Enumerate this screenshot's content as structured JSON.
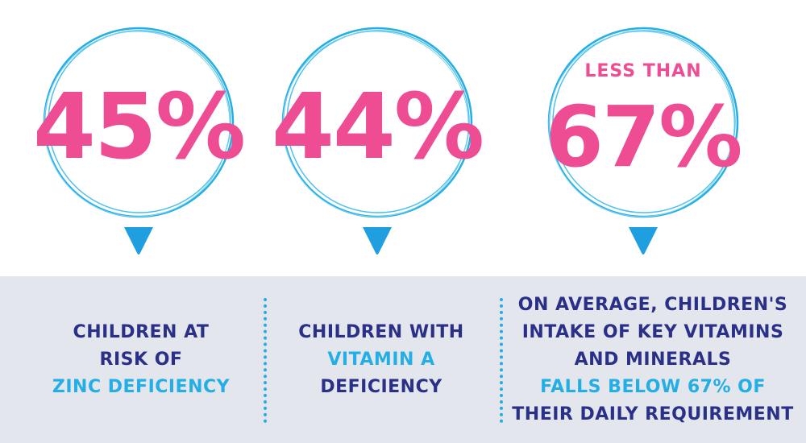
{
  "stats": [
    {
      "prefix": "",
      "value": "45%",
      "caption": [
        {
          "text": "CHILDREN AT",
          "color": "navy"
        },
        {
          "text": "RISK OF",
          "color": "navy"
        },
        {
          "text": "ZINC DEFICIENCY",
          "color": "blue"
        }
      ]
    },
    {
      "prefix": "",
      "value": "44%",
      "caption": [
        {
          "text": "CHILDREN WITH",
          "color": "navy"
        },
        {
          "text": "VITAMIN A",
          "color": "blue"
        },
        {
          "text": "DEFICIENCY",
          "color": "navy"
        }
      ]
    },
    {
      "prefix": "LESS THAN",
      "value": "67%",
      "caption": [
        {
          "text": "ON AVERAGE, CHILDREN'S",
          "color": "navy"
        },
        {
          "text": "INTAKE OF KEY VITAMINS",
          "color": "navy"
        },
        {
          "text": "AND MINERALS",
          "color": "navy"
        },
        {
          "text": "FALLS BELOW 67% OF",
          "color": "blue"
        },
        {
          "text": "THEIR DAILY REQUIREMENT",
          "color": "navy"
        }
      ]
    }
  ],
  "colors": {
    "pink": "#ee4c93",
    "navy": "#2a2f88",
    "blue": "#23aee5",
    "panel": "#e3e6ec"
  }
}
